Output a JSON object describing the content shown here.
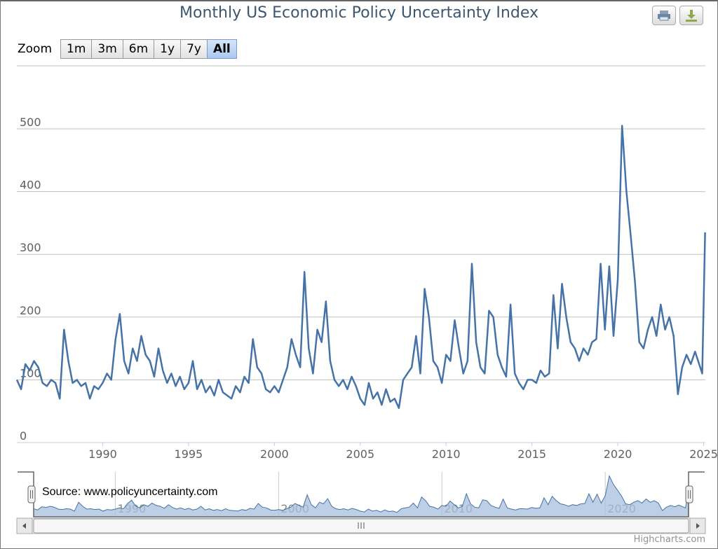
{
  "title": "Monthly US Economic Policy Uncertainty Index",
  "toolbar": {
    "print_icon": "printer-icon",
    "export_icon": "download-icon"
  },
  "range_selector": {
    "label": "Zoom",
    "buttons": [
      "1m",
      "3m",
      "6m",
      "1y",
      "7y",
      "All"
    ],
    "selected": "All"
  },
  "source": "Source: www.policyuncertainty.com",
  "credit": "Highcharts.com",
  "colors": {
    "series": "#4572A7",
    "navigator_fill": "#A7BFDC",
    "title": "#3E576F",
    "grid": "#C0C0C0",
    "selected_button": "#A9C8EF"
  },
  "chart_data": {
    "type": "line",
    "title": "Monthly US Economic Policy Uncertainty Index",
    "xlabel": "",
    "ylabel": "",
    "ylim": [
      0,
      550
    ],
    "yticks": [
      0,
      100,
      200,
      300,
      400,
      500
    ],
    "xticks": [
      "1990",
      "1995",
      "2000",
      "2005",
      "2010",
      "2015",
      "2020",
      "2025"
    ],
    "navigator_xticks": [
      "1990",
      "2000",
      "2010",
      "2020"
    ],
    "grid": true,
    "legend": "none",
    "navigator": true,
    "x": [
      "1985-01",
      "1985-04",
      "1985-07",
      "1985-10",
      "1986-01",
      "1986-04",
      "1986-07",
      "1986-10",
      "1987-01",
      "1987-04",
      "1987-07",
      "1987-10",
      "1988-01",
      "1988-04",
      "1988-07",
      "1988-10",
      "1989-01",
      "1989-04",
      "1989-07",
      "1989-10",
      "1990-01",
      "1990-04",
      "1990-07",
      "1990-10",
      "1991-01",
      "1991-04",
      "1991-07",
      "1991-10",
      "1992-01",
      "1992-04",
      "1992-07",
      "1992-10",
      "1993-01",
      "1993-04",
      "1993-07",
      "1993-10",
      "1994-01",
      "1994-04",
      "1994-07",
      "1994-10",
      "1995-01",
      "1995-04",
      "1995-07",
      "1995-10",
      "1996-01",
      "1996-04",
      "1996-07",
      "1996-10",
      "1997-01",
      "1997-04",
      "1997-07",
      "1997-10",
      "1998-01",
      "1998-04",
      "1998-07",
      "1998-10",
      "1999-01",
      "1999-04",
      "1999-07",
      "1999-10",
      "2000-01",
      "2000-04",
      "2000-07",
      "2000-10",
      "2001-01",
      "2001-04",
      "2001-07",
      "2001-10",
      "2002-01",
      "2002-04",
      "2002-07",
      "2002-10",
      "2003-01",
      "2003-04",
      "2003-07",
      "2003-10",
      "2004-01",
      "2004-04",
      "2004-07",
      "2004-10",
      "2005-01",
      "2005-04",
      "2005-07",
      "2005-10",
      "2006-01",
      "2006-04",
      "2006-07",
      "2006-10",
      "2007-01",
      "2007-04",
      "2007-07",
      "2007-10",
      "2008-01",
      "2008-04",
      "2008-07",
      "2008-10",
      "2009-01",
      "2009-04",
      "2009-07",
      "2009-10",
      "2010-01",
      "2010-04",
      "2010-07",
      "2010-10",
      "2011-01",
      "2011-04",
      "2011-07",
      "2011-10",
      "2012-01",
      "2012-04",
      "2012-07",
      "2012-10",
      "2013-01",
      "2013-04",
      "2013-07",
      "2013-10",
      "2014-01",
      "2014-04",
      "2014-07",
      "2014-10",
      "2015-01",
      "2015-04",
      "2015-07",
      "2015-10",
      "2016-01",
      "2016-04",
      "2016-07",
      "2016-10",
      "2017-01",
      "2017-04",
      "2017-07",
      "2017-10",
      "2018-01",
      "2018-04",
      "2018-07",
      "2018-10",
      "2019-01",
      "2019-04",
      "2019-07",
      "2019-10",
      "2020-01",
      "2020-04",
      "2020-07",
      "2020-10",
      "2021-01",
      "2021-04",
      "2021-07",
      "2021-10",
      "2022-01",
      "2022-04",
      "2022-07",
      "2022-10",
      "2023-01",
      "2023-04",
      "2023-07",
      "2023-10",
      "2024-01",
      "2024-04",
      "2024-07",
      "2024-12",
      "2025-01",
      "2025-02"
    ],
    "y": [
      100,
      85,
      125,
      115,
      130,
      120,
      95,
      90,
      100,
      95,
      70,
      180,
      130,
      95,
      100,
      90,
      95,
      70,
      90,
      85,
      95,
      110,
      100,
      165,
      205,
      130,
      110,
      150,
      130,
      170,
      140,
      130,
      105,
      150,
      115,
      95,
      110,
      90,
      105,
      85,
      95,
      130,
      85,
      100,
      80,
      90,
      75,
      100,
      80,
      75,
      70,
      90,
      80,
      105,
      95,
      165,
      120,
      110,
      85,
      80,
      90,
      80,
      100,
      120,
      165,
      140,
      120,
      272,
      150,
      110,
      180,
      160,
      225,
      130,
      100,
      90,
      100,
      85,
      105,
      90,
      70,
      60,
      95,
      70,
      80,
      60,
      85,
      65,
      70,
      55,
      100,
      110,
      120,
      170,
      110,
      245,
      200,
      130,
      120,
      95,
      140,
      130,
      195,
      150,
      110,
      130,
      285,
      160,
      120,
      110,
      210,
      200,
      140,
      120,
      105,
      220,
      110,
      95,
      85,
      100,
      100,
      95,
      115,
      105,
      110,
      235,
      150,
      253,
      200,
      160,
      150,
      130,
      150,
      140,
      160,
      165,
      285,
      180,
      281,
      170,
      260,
      505,
      400,
      330,
      256,
      160,
      150,
      180,
      200,
      170,
      220,
      180,
      200,
      170,
      77,
      120,
      140,
      125,
      145,
      110,
      225,
      335
    ]
  }
}
